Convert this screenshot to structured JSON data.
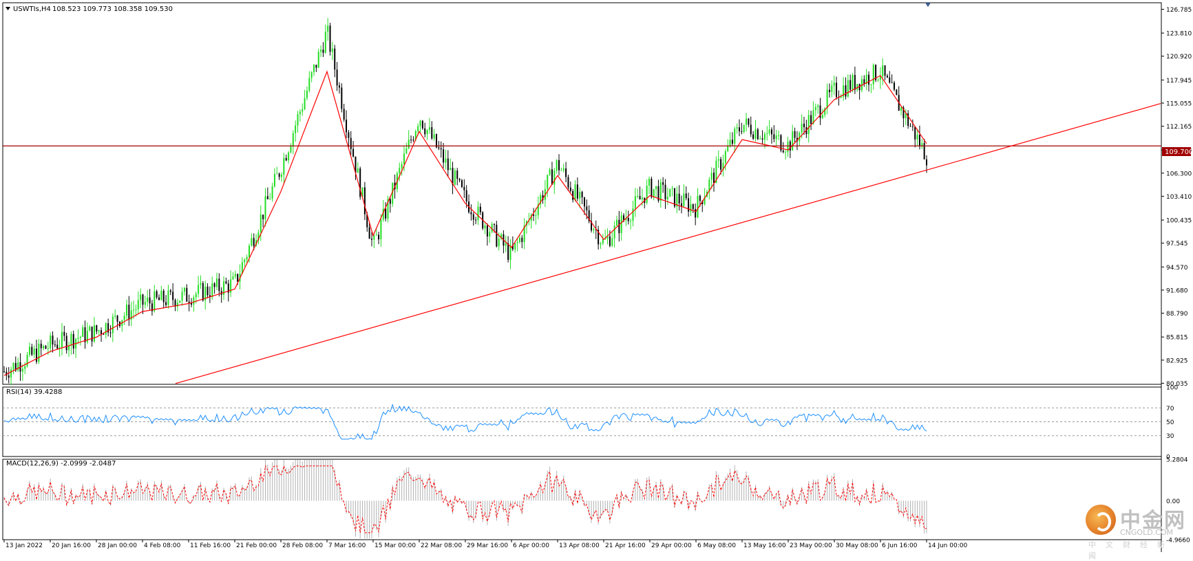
{
  "header": {
    "symbol": "USWTIs,H4",
    "ohlc": "108.523 109.773 108.358 109.530"
  },
  "current_price_label": "109.700",
  "rsi": {
    "label": "RSI(14) 39.4288",
    "ticks": [
      "100",
      "70",
      "50",
      "30",
      "0"
    ]
  },
  "macd": {
    "label": "MACD(12,26,9) -2.0999 -2.0487",
    "ticks": [
      "5.2804",
      "0.00",
      "-4.9660"
    ]
  },
  "x_labels": [
    "13 Jan 2022",
    "20 Jan 16:00",
    "28 Jan 00:00",
    "4 Feb 08:00",
    "11 Feb 16:00",
    "21 Feb 00:00",
    "28 Feb 08:00",
    "7 Mar 16:00",
    "15 Mar 00:00",
    "22 Mar 08:00",
    "29 Mar 16:00",
    "6 Apr 00:00",
    "13 Apr 08:00",
    "21 Apr 16:00",
    "29 Apr 00:00",
    "6 May 08:00",
    "13 May 16:00",
    "23 May 00:00",
    "30 May 08:00",
    "6 Jun 16:00",
    "14 Jun 00:00"
  ],
  "watermark": {
    "cn": "中金网",
    "en": "CNGOLD.COM",
    "sub": "中文财经新闻"
  },
  "colors": {
    "bull": "#22dd22",
    "bear": "#000000",
    "ma": "#ff0000",
    "rsi": "#1e90ff",
    "signal": "#ff0000",
    "histogram": "#b0b0b0",
    "support": "#ff0000",
    "level": "#a00000"
  },
  "chart_data": {
    "type": "candlestick",
    "timeframe": "H4",
    "price_axis": {
      "ticks": [
        126.785,
        123.81,
        120.92,
        117.945,
        115.055,
        112.165,
        109.19,
        106.3,
        103.41,
        100.435,
        97.545,
        94.57,
        91.68,
        88.79,
        85.815,
        82.925,
        80.035
      ],
      "ylim": [
        79.9,
        127.6
      ]
    },
    "horizontal_level": 109.7,
    "support_trendline": {
      "from": [
        "10 Feb 2022",
        80.0
      ],
      "to": [
        "end",
        115.0
      ]
    },
    "price_path": {
      "dates": [
        "13 Jan 2022",
        "20 Jan 16:00",
        "28 Jan 00:00",
        "4 Feb 08:00",
        "11 Feb 16:00",
        "21 Feb 00:00",
        "28 Feb 08:00",
        "7 Mar 16:00",
        "15 Mar 00:00",
        "22 Mar 08:00",
        "29 Mar 16:00",
        "6 Apr 00:00",
        "13 Apr 08:00",
        "21 Apr 16:00",
        "29 Apr 00:00",
        "6 May 08:00",
        "13 May 16:00",
        "23 May 00:00",
        "30 May 08:00",
        "6 Jun 16:00",
        "14 Jun 00:00"
      ],
      "close": [
        81.5,
        84.8,
        86.5,
        90.0,
        91.0,
        92.5,
        107.0,
        124.0,
        97.0,
        113.5,
        103.0,
        96.0,
        107.5,
        97.5,
        104.5,
        102.0,
        112.5,
        109.8,
        116.5,
        119.0,
        108.5
      ]
    },
    "ma_path": [
      81.0,
      84.0,
      85.8,
      89.0,
      90.0,
      91.8,
      104.0,
      119.0,
      98.5,
      111.5,
      102.5,
      97.0,
      106.0,
      98.0,
      103.5,
      101.5,
      110.5,
      109.2,
      115.5,
      118.5,
      110.0
    ]
  }
}
